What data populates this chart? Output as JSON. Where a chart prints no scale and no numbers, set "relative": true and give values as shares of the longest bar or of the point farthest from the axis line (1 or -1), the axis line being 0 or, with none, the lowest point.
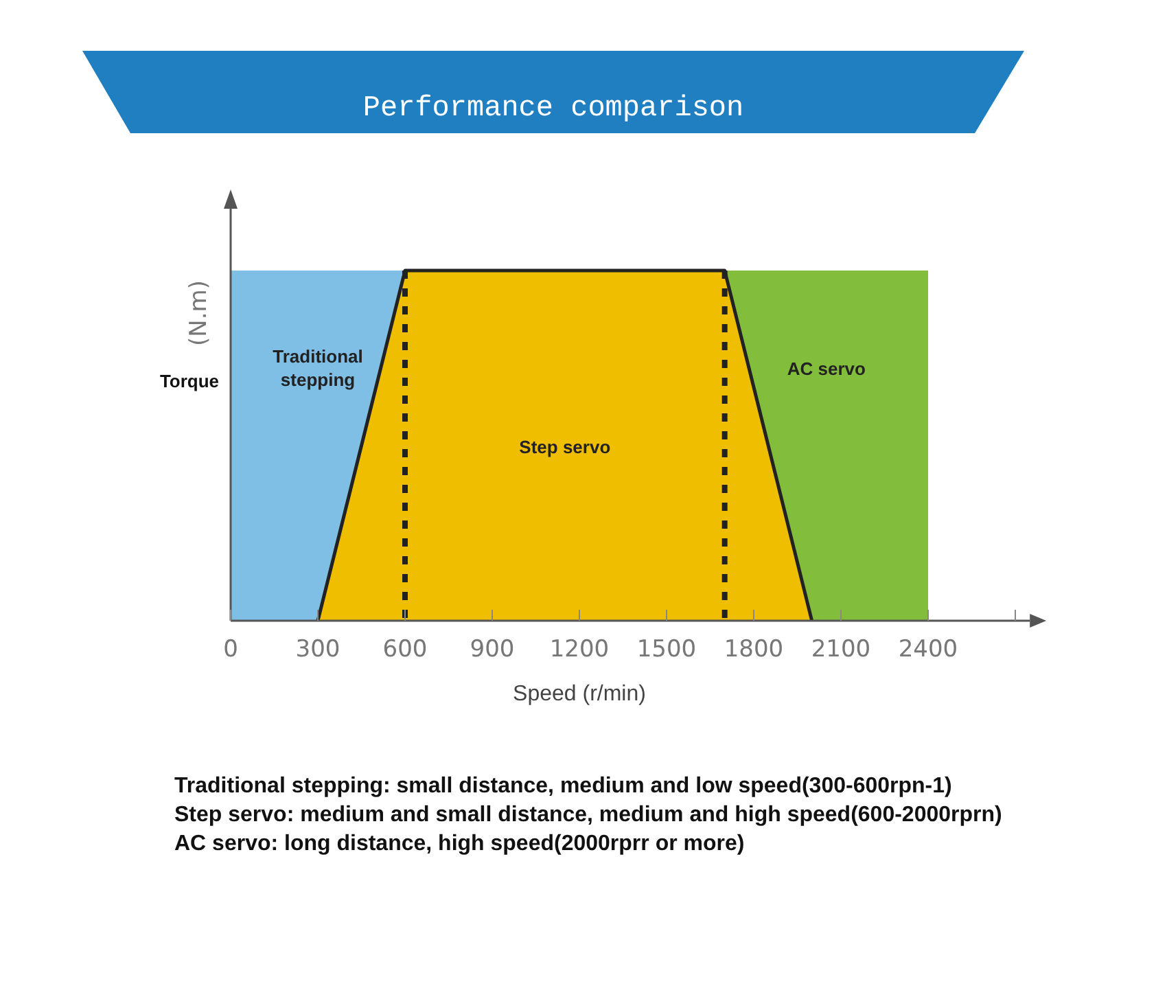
{
  "chart_data": {
    "type": "area",
    "title": "Performance comparison",
    "xlabel": "Speed (r/min)",
    "ylabel": "(N.m)",
    "relative": true,
    "series": [
      {
        "name": "Traditional stepping",
        "color": "#7fbfe5",
        "x": [
          0,
          600
        ],
        "values": [
          1,
          1
        ]
      },
      {
        "name": "AC servo",
        "color": "#83bd3c",
        "x": [
          1700,
          2400
        ],
        "values": [
          1,
          1
        ]
      },
      {
        "name": "Step servo",
        "color": "#f0be00",
        "x": [
          300,
          600,
          1700,
          2000
        ],
        "values": [
          0,
          1,
          1,
          0
        ]
      }
    ],
    "xlim": [
      0,
      2750
    ],
    "xticks": [
      0,
      300,
      600,
      900,
      1200,
      1500,
      1800,
      2100,
      2400,
      {
        "value": 2700,
        "label": null
      }
    ],
    "ref_lines": [
      {
        "axis": "x",
        "value": 600,
        "color": "#222222",
        "line_style": "dashed"
      },
      {
        "axis": "x",
        "value": 1700,
        "color": "#222222",
        "line_style": "dashed"
      }
    ],
    "annotations": [
      "Torque",
      "Traditional stepping: small distance, medium and low speed(300-600rpn-1)",
      "Step servo: medium and small distance, medium and high speed(600-2000rprn)",
      "AC servo: long distance, high speed(2000rprr or more)"
    ]
  }
}
